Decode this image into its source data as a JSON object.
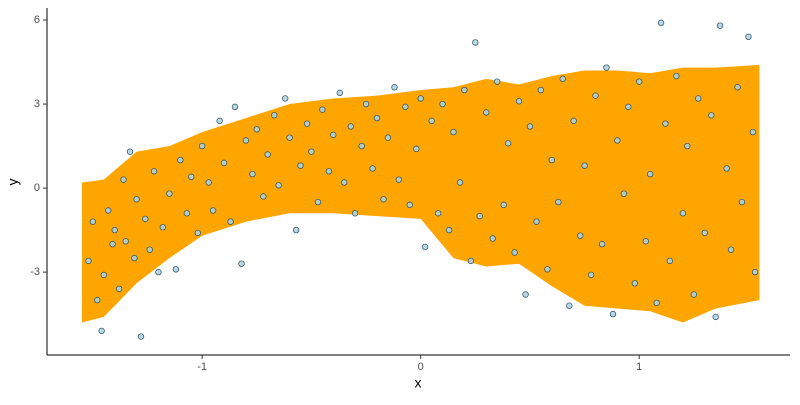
{
  "chart_data": {
    "type": "scatter",
    "x_label": "x",
    "y_label": "y",
    "xlim": [
      -1.71,
      1.69
    ],
    "ylim": [
      -5.96,
      6.43
    ],
    "xticks": [
      -1,
      0,
      1
    ],
    "yticks": [
      -3,
      0,
      3,
      6
    ],
    "grid": false,
    "point_color": "#a9d3e6",
    "point_edge": "#3d5a66",
    "band": {
      "color": "#ffa500",
      "x": [
        -1.55,
        -1.45,
        -1.3,
        -1.15,
        -1.0,
        -0.8,
        -0.6,
        -0.4,
        -0.2,
        0.0,
        0.15,
        0.3,
        0.45,
        0.6,
        0.75,
        0.9,
        1.05,
        1.2,
        1.35,
        1.55
      ],
      "upper": [
        0.2,
        0.3,
        1.3,
        1.5,
        2.0,
        2.5,
        3.0,
        3.2,
        3.3,
        3.5,
        3.6,
        3.9,
        3.7,
        4.0,
        4.2,
        4.2,
        4.1,
        4.3,
        4.3,
        4.4
      ],
      "lower": [
        -4.8,
        -4.6,
        -3.4,
        -2.5,
        -1.7,
        -1.2,
        -0.9,
        -0.9,
        -1.0,
        -1.1,
        -2.5,
        -2.8,
        -2.7,
        -3.5,
        -4.2,
        -4.3,
        -4.4,
        -4.8,
        -4.3,
        -4.0
      ]
    },
    "x": [
      -1.52,
      -1.5,
      -1.48,
      -1.46,
      -1.45,
      -1.43,
      -1.41,
      -1.4,
      -1.38,
      -1.36,
      -1.35,
      -1.33,
      -1.31,
      -1.3,
      -1.28,
      -1.26,
      -1.24,
      -1.22,
      -1.2,
      -1.18,
      -1.15,
      -1.12,
      -1.1,
      -1.07,
      -1.05,
      -1.02,
      -1.0,
      -0.97,
      -0.95,
      -0.92,
      -0.9,
      -0.87,
      -0.85,
      -0.82,
      -0.8,
      -0.77,
      -0.75,
      -0.72,
      -0.7,
      -0.67,
      -0.65,
      -0.62,
      -0.6,
      -0.57,
      -0.55,
      -0.52,
      -0.5,
      -0.47,
      -0.45,
      -0.42,
      -0.4,
      -0.37,
      -0.35,
      -0.32,
      -0.3,
      -0.27,
      -0.25,
      -0.22,
      -0.2,
      -0.17,
      -0.15,
      -0.12,
      -0.1,
      -0.07,
      -0.05,
      -0.02,
      0.0,
      0.02,
      0.05,
      0.08,
      0.1,
      0.13,
      0.15,
      0.18,
      0.2,
      0.23,
      0.25,
      0.27,
      0.3,
      0.33,
      0.35,
      0.38,
      0.4,
      0.43,
      0.45,
      0.48,
      0.5,
      0.53,
      0.55,
      0.58,
      0.6,
      0.63,
      0.65,
      0.68,
      0.7,
      0.73,
      0.75,
      0.78,
      0.8,
      0.83,
      0.85,
      0.88,
      0.9,
      0.93,
      0.95,
      0.98,
      1.0,
      1.03,
      1.05,
      1.08,
      1.1,
      1.12,
      1.14,
      1.17,
      1.2,
      1.22,
      1.25,
      1.27,
      1.3,
      1.33,
      1.35,
      1.37,
      1.4,
      1.42,
      1.45,
      1.47,
      1.5,
      1.52,
      1.53
    ],
    "values": [
      -2.6,
      -1.2,
      -4.0,
      -5.1,
      -3.1,
      -0.8,
      -2.0,
      -1.5,
      -3.6,
      0.3,
      -1.9,
      1.3,
      -2.5,
      -0.4,
      -5.3,
      -1.1,
      -2.2,
      0.6,
      -3.0,
      -1.4,
      -0.2,
      -2.9,
      1.0,
      -0.9,
      0.4,
      -1.6,
      1.5,
      0.2,
      -0.8,
      2.4,
      0.9,
      -1.2,
      2.9,
      -2.7,
      1.7,
      0.5,
      2.1,
      -0.3,
      1.2,
      2.6,
      0.1,
      3.2,
      1.8,
      -1.5,
      0.8,
      2.3,
      1.3,
      -0.5,
      2.8,
      0.6,
      1.9,
      3.4,
      0.2,
      2.2,
      -0.9,
      1.5,
      3.0,
      0.7,
      2.5,
      -0.4,
      1.8,
      3.6,
      0.3,
      2.9,
      -0.6,
      1.4,
      3.2,
      -2.1,
      2.4,
      -0.9,
      3.0,
      -1.5,
      2.0,
      0.2,
      3.5,
      -2.6,
      5.2,
      -1.0,
      2.7,
      -1.8,
      3.8,
      -0.6,
      1.6,
      -2.3,
      3.1,
      -3.8,
      2.2,
      -1.2,
      3.5,
      -2.9,
      1.0,
      -0.5,
      3.9,
      -4.2,
      2.4,
      -1.7,
      0.8,
      -3.1,
      3.3,
      -2.0,
      4.3,
      -4.5,
      1.7,
      -0.2,
      2.9,
      -3.4,
      3.8,
      -1.9,
      0.5,
      -4.1,
      5.9,
      2.3,
      -2.6,
      4.0,
      -0.9,
      1.5,
      -3.8,
      3.2,
      -1.6,
      2.6,
      -4.6,
      5.8,
      0.7,
      -2.2,
      3.6,
      -0.5,
      5.4,
      2.0,
      -3.0
    ]
  }
}
